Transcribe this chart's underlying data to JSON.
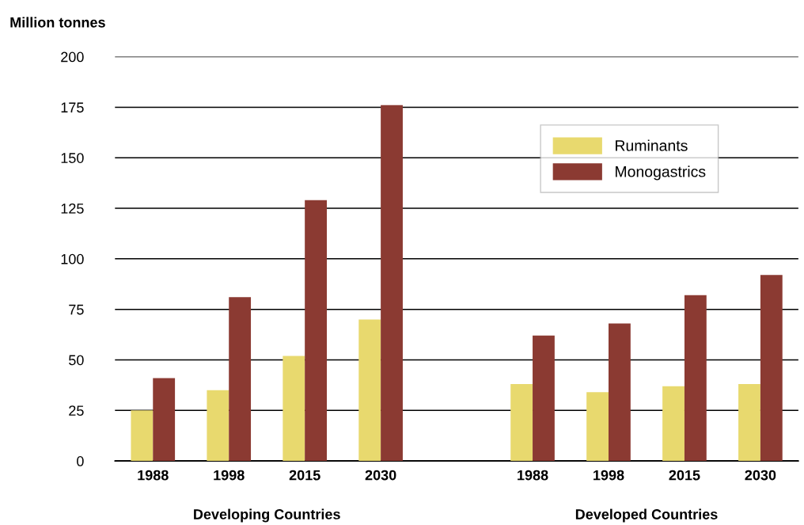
{
  "chart_data": {
    "type": "bar",
    "ylabel": "Million tonnes",
    "categories": [
      "1988",
      "1998",
      "2015",
      "2030",
      null,
      "1988",
      "1998",
      "2015",
      "2030"
    ],
    "series": [
      {
        "name": "Ruminants",
        "color": "#e8d96e",
        "values": [
          25,
          35,
          52,
          70,
          null,
          38,
          34,
          37,
          38
        ]
      },
      {
        "name": "Monogastrics",
        "color": "#8b3a32",
        "values": [
          41,
          81,
          129,
          176,
          null,
          62,
          68,
          82,
          92
        ]
      }
    ],
    "ylim": [
      0,
      200
    ],
    "yticks": [
      0,
      25,
      50,
      75,
      100,
      125,
      150,
      175,
      200
    ],
    "grid": "y",
    "legend": "top right",
    "annotations": [
      "Developing Countries",
      "Developed Countries"
    ]
  }
}
